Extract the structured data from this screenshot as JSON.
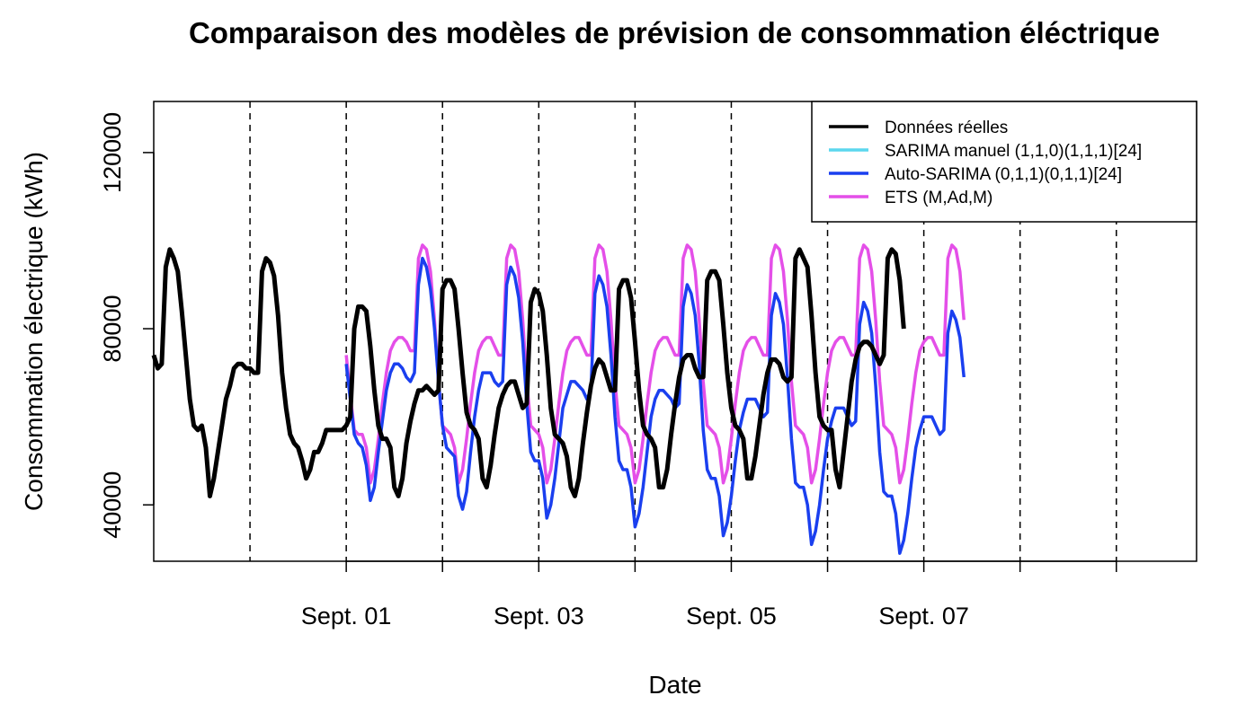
{
  "chart_data": {
    "type": "line",
    "title": "Comparaison des modèles de prévision de consommation éléctrique",
    "xlabel": "Date",
    "ylabel": "Consommation électrique (kWh)",
    "ylim": [
      27200,
      131600
    ],
    "xlim": [
      -48,
      212
    ],
    "x_unit": "hours from Sept. 01 00:00",
    "y_ticks": [
      40000,
      80000,
      120000
    ],
    "x_ticks": [
      {
        "label": "Sept. 01",
        "hour": 0
      },
      {
        "label": "Sept. 03",
        "hour": 48
      },
      {
        "label": "Sept. 05",
        "hour": 96
      },
      {
        "label": "Sept. 07",
        "hour": 144
      }
    ],
    "x_minor_ticks": [
      24,
      72,
      120,
      168,
      192
    ],
    "vlines": [
      -24,
      0,
      24,
      48,
      72,
      96,
      120,
      144,
      168,
      192
    ],
    "grid": false,
    "legend_position": "top-right",
    "series": [
      {
        "name": "Données réelles",
        "color": "#000000",
        "x_start": -48,
        "values": [
          74000,
          71000,
          72000,
          94000,
          98000,
          96000,
          93000,
          84000,
          74000,
          64000,
          58000,
          57000,
          58000,
          53000,
          42000,
          46000,
          52000,
          58000,
          64000,
          67000,
          71000,
          72000,
          72000,
          71000,
          71000,
          70000,
          70000,
          93000,
          96000,
          95000,
          92000,
          83000,
          70000,
          62000,
          56000,
          54000,
          53000,
          50000,
          46000,
          48000,
          52000,
          52000,
          54000,
          57000,
          57000,
          57000,
          57000,
          57000,
          58000,
          60000,
          80000,
          85000,
          85000,
          84000,
          76000,
          66000,
          58000,
          55000,
          55000,
          53000,
          44000,
          42000,
          46000,
          54000,
          59000,
          63000,
          66000,
          66000,
          67000,
          66000,
          65000,
          66000,
          89000,
          91000,
          91000,
          89000,
          80000,
          70000,
          61000,
          58000,
          57000,
          55000,
          46000,
          44000,
          49000,
          56000,
          62000,
          65000,
          67000,
          68000,
          68000,
          65000,
          62000,
          63000,
          86000,
          89000,
          88000,
          84000,
          74000,
          62000,
          56000,
          55000,
          54000,
          51000,
          44000,
          42000,
          46000,
          54000,
          61000,
          67000,
          71000,
          73000,
          72000,
          69000,
          66000,
          66000,
          89000,
          91000,
          91000,
          87000,
          77000,
          66000,
          58000,
          56000,
          55000,
          53000,
          44000,
          44000,
          48000,
          56000,
          63000,
          69000,
          73000,
          74000,
          74000,
          71000,
          69000,
          69000,
          91000,
          93000,
          93000,
          91000,
          81000,
          70000,
          62000,
          58000,
          57000,
          55000,
          46000,
          46000,
          51000,
          58000,
          65000,
          70000,
          73000,
          73000,
          72000,
          69000,
          68000,
          69000,
          96000,
          98000,
          96000,
          94000,
          83000,
          70000,
          60000,
          58000,
          57000,
          57000,
          48000,
          44000,
          52000,
          60000,
          68000,
          73000,
          76000,
          77000,
          77000,
          76000,
          74000,
          72000,
          74000,
          96000,
          98000,
          97000,
          91000,
          80000
        ]
      },
      {
        "name": "SARIMA manuel (1,1,0)(1,1,1)[24]",
        "color": "#5BD7EE",
        "x_start": 0,
        "values": []
      },
      {
        "name": "Auto-SARIMA (0,1,1)(0,1,1)[24]",
        "color": "#1A3FEF",
        "x_start": 0,
        "values": [
          72000,
          64000,
          56000,
          54000,
          53000,
          49000,
          41000,
          44000,
          52000,
          59000,
          66000,
          70000,
          72000,
          72000,
          71000,
          69000,
          68000,
          70000,
          90000,
          96000,
          94000,
          89000,
          80000,
          68000,
          58000,
          53000,
          52000,
          51000,
          42000,
          39000,
          43000,
          52000,
          60000,
          66000,
          70000,
          70000,
          70000,
          68000,
          67000,
          68000,
          90000,
          94000,
          92000,
          87000,
          77000,
          63000,
          52000,
          50000,
          50000,
          46000,
          37000,
          40000,
          46000,
          54000,
          62000,
          65000,
          68000,
          68000,
          67000,
          66000,
          64000,
          66000,
          88000,
          92000,
          90000,
          85000,
          74000,
          60000,
          50000,
          48000,
          48000,
          44000,
          35000,
          38000,
          44000,
          52000,
          60000,
          64000,
          66000,
          66000,
          65000,
          64000,
          62000,
          63000,
          85000,
          90000,
          88000,
          83000,
          72000,
          57000,
          48000,
          46000,
          46000,
          42000,
          33000,
          36000,
          42000,
          50000,
          57000,
          61000,
          64000,
          64000,
          64000,
          62000,
          60000,
          61000,
          83000,
          88000,
          86000,
          81000,
          69000,
          55000,
          45000,
          44000,
          44000,
          40000,
          31000,
          34000,
          40000,
          48000,
          55000,
          59000,
          62000,
          62000,
          62000,
          60000,
          58000,
          59000,
          81000,
          86000,
          84000,
          79000,
          67000,
          52000,
          43000,
          42000,
          42000,
          38000,
          29000,
          32000,
          38000,
          46000,
          53000,
          57000,
          60000,
          60000,
          60000,
          58000,
          56000,
          57000,
          79000,
          84000,
          82000,
          78000,
          69000
        ]
      },
      {
        "name": "ETS (M,Ad,M)",
        "color": "#E44FE8",
        "x_start": 0,
        "values": [
          74000,
          65000,
          57000,
          56000,
          56000,
          53000,
          45000,
          48000,
          55000,
          63000,
          70000,
          75000,
          77000,
          78000,
          78000,
          77000,
          75000,
          75000,
          96000,
          99000,
          98000,
          93000,
          82000,
          68000,
          58000,
          57000,
          56000,
          53000,
          45000,
          48000,
          55000,
          63000,
          70000,
          75000,
          77000,
          78000,
          78000,
          76000,
          74000,
          74000,
          96000,
          99000,
          98000,
          93000,
          82000,
          68000,
          58000,
          57000,
          56000,
          53000,
          45000,
          48000,
          55000,
          63000,
          70000,
          75000,
          77000,
          78000,
          78000,
          76000,
          74000,
          74000,
          96000,
          99000,
          98000,
          93000,
          82000,
          68000,
          58000,
          57000,
          56000,
          53000,
          45000,
          48000,
          55000,
          63000,
          70000,
          75000,
          77000,
          78000,
          78000,
          76000,
          74000,
          74000,
          96000,
          99000,
          98000,
          93000,
          82000,
          68000,
          58000,
          57000,
          56000,
          53000,
          45000,
          48000,
          55000,
          63000,
          70000,
          75000,
          77000,
          78000,
          78000,
          76000,
          74000,
          74000,
          96000,
          99000,
          98000,
          93000,
          82000,
          68000,
          58000,
          57000,
          56000,
          53000,
          45000,
          48000,
          55000,
          63000,
          70000,
          75000,
          77000,
          78000,
          78000,
          76000,
          74000,
          74000,
          96000,
          99000,
          98000,
          93000,
          82000,
          68000,
          58000,
          57000,
          56000,
          53000,
          45000,
          48000,
          55000,
          63000,
          70000,
          75000,
          77000,
          78000,
          78000,
          76000,
          74000,
          74000,
          96000,
          99000,
          98000,
          93000,
          82000
        ]
      }
    ]
  }
}
